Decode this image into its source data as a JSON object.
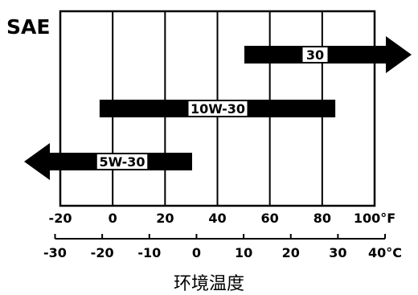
{
  "chart_data": {
    "type": "bar",
    "title": "SAE",
    "caption": "环境温度",
    "unit_f": "°F",
    "unit_c": "°C",
    "fahrenheit_ticks": [
      -20,
      0,
      20,
      40,
      60,
      80,
      100
    ],
    "fahrenheit_tick_labels": [
      "-20",
      "0",
      "20",
      "40",
      "60",
      "80",
      "100°F"
    ],
    "celsius_ticks": [
      -30,
      -20,
      -10,
      0,
      10,
      20,
      30,
      40
    ],
    "celsius_tick_labels": [
      "-30",
      "-20",
      "-10",
      "0",
      "10",
      "20",
      "30",
      "40°C"
    ],
    "xlim_f": [
      -20,
      100
    ],
    "grid": true,
    "series": [
      {
        "name": "30",
        "range_f": [
          50,
          100
        ],
        "arrow_right": true,
        "arrow_left": false
      },
      {
        "name": "10W-30",
        "range_f": [
          -5,
          85
        ],
        "arrow_right": false,
        "arrow_left": false
      },
      {
        "name": "5W-30",
        "range_f": [
          -20,
          30
        ],
        "arrow_right": false,
        "arrow_left": true
      }
    ]
  }
}
